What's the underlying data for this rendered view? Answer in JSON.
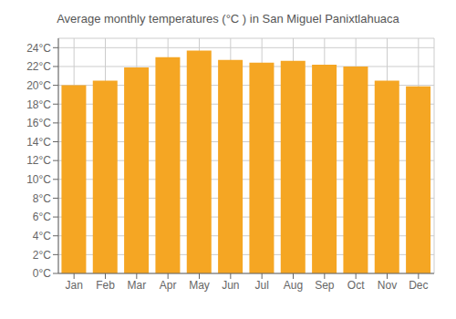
{
  "chart_data": {
    "type": "bar",
    "title": "Average monthly temperatures (°C ) in San Miguel Panixtlahuaca",
    "categories": [
      "Jan",
      "Feb",
      "Mar",
      "Apr",
      "May",
      "Jun",
      "Jul",
      "Aug",
      "Sep",
      "Oct",
      "Nov",
      "Dec"
    ],
    "values": [
      20.0,
      20.5,
      21.9,
      23.0,
      23.7,
      22.7,
      22.4,
      22.6,
      22.2,
      22.0,
      20.5,
      19.9
    ],
    "color": "#F5A623",
    "ylim": [
      0,
      25
    ],
    "yticks": [
      {
        "value": 0,
        "label": "0°C"
      },
      {
        "value": 2,
        "label": "2°C"
      },
      {
        "value": 4,
        "label": "4°C"
      },
      {
        "value": 6,
        "label": "6°C"
      },
      {
        "value": 8,
        "label": "8°C"
      },
      {
        "value": 10,
        "label": "10°C"
      },
      {
        "value": 12,
        "label": "12°C"
      },
      {
        "value": 14,
        "label": "14°C"
      },
      {
        "value": 16,
        "label": "16°C"
      },
      {
        "value": 18,
        "label": "18°C"
      },
      {
        "value": 20,
        "label": "20°C"
      },
      {
        "value": 22,
        "label": "22°C"
      },
      {
        "value": 24,
        "label": "24°C"
      }
    ],
    "grid": true
  }
}
